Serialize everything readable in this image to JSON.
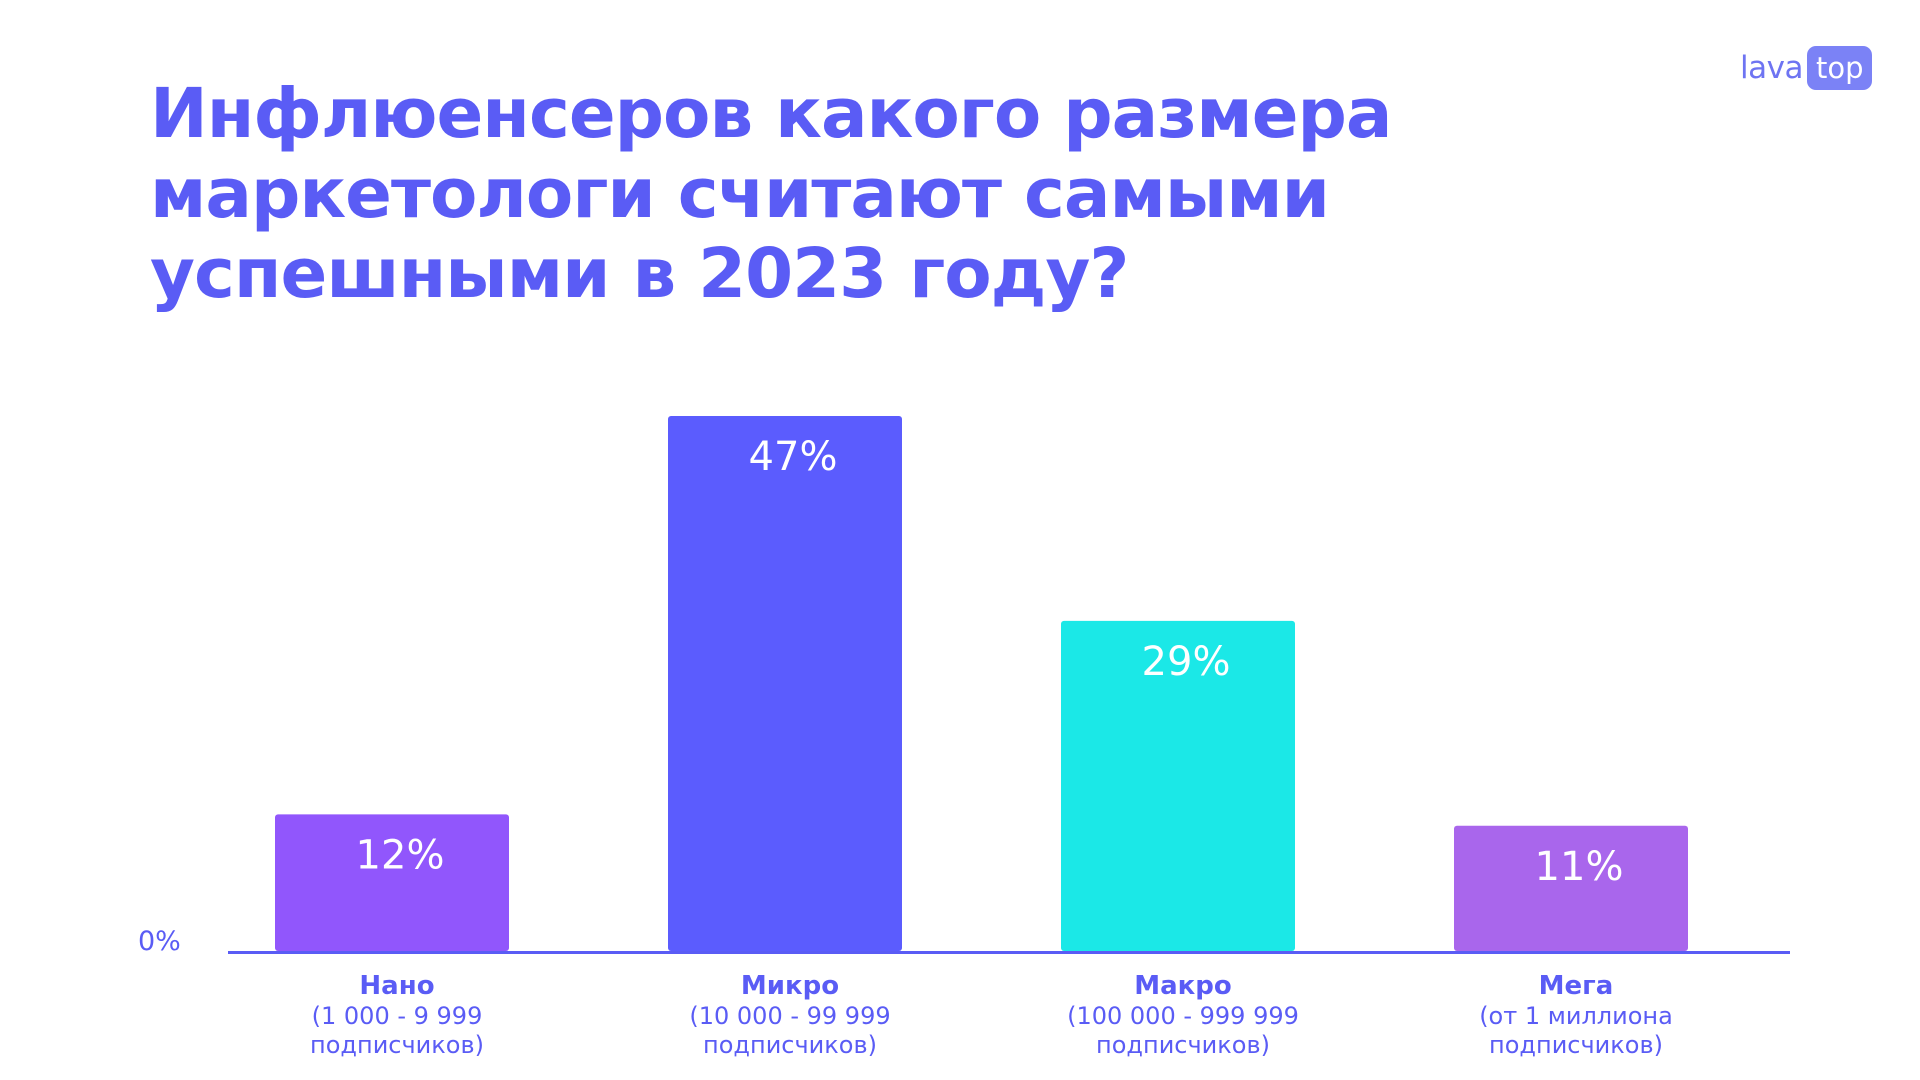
{
  "logo": {
    "word": "lava",
    "badge": "top"
  },
  "title": "Инфлюенсеров какого размера маркетологи считают самыми успешными в 2023 году?",
  "colors": {
    "accent": "#5a5cf5",
    "nano": "#9156fc",
    "micro": "#5b5cfe",
    "macro": "#1be8e7",
    "mega": "#a966ec"
  },
  "chart_data": {
    "type": "bar",
    "categories": [
      "Нано",
      "Микро",
      "Макро",
      "Мега"
    ],
    "category_details": [
      [
        "(1 000 - 9 999",
        "подписчиков)"
      ],
      [
        "(10 000 - 99 999",
        "подписчиков)"
      ],
      [
        "(100 000 - 999 999",
        "подписчиков)"
      ],
      [
        "(от 1 миллиона",
        "подписчиков)"
      ]
    ],
    "values": [
      12,
      47,
      29,
      11
    ],
    "value_labels": [
      "12%",
      "47%",
      "29%",
      "11%"
    ],
    "bar_colors": [
      "#9156fc",
      "#5b5cfe",
      "#1be8e7",
      "#a966ec"
    ],
    "ylim": [
      0,
      47
    ],
    "y_tick_labels": [
      "0%"
    ],
    "grid": false,
    "legend": "none"
  }
}
